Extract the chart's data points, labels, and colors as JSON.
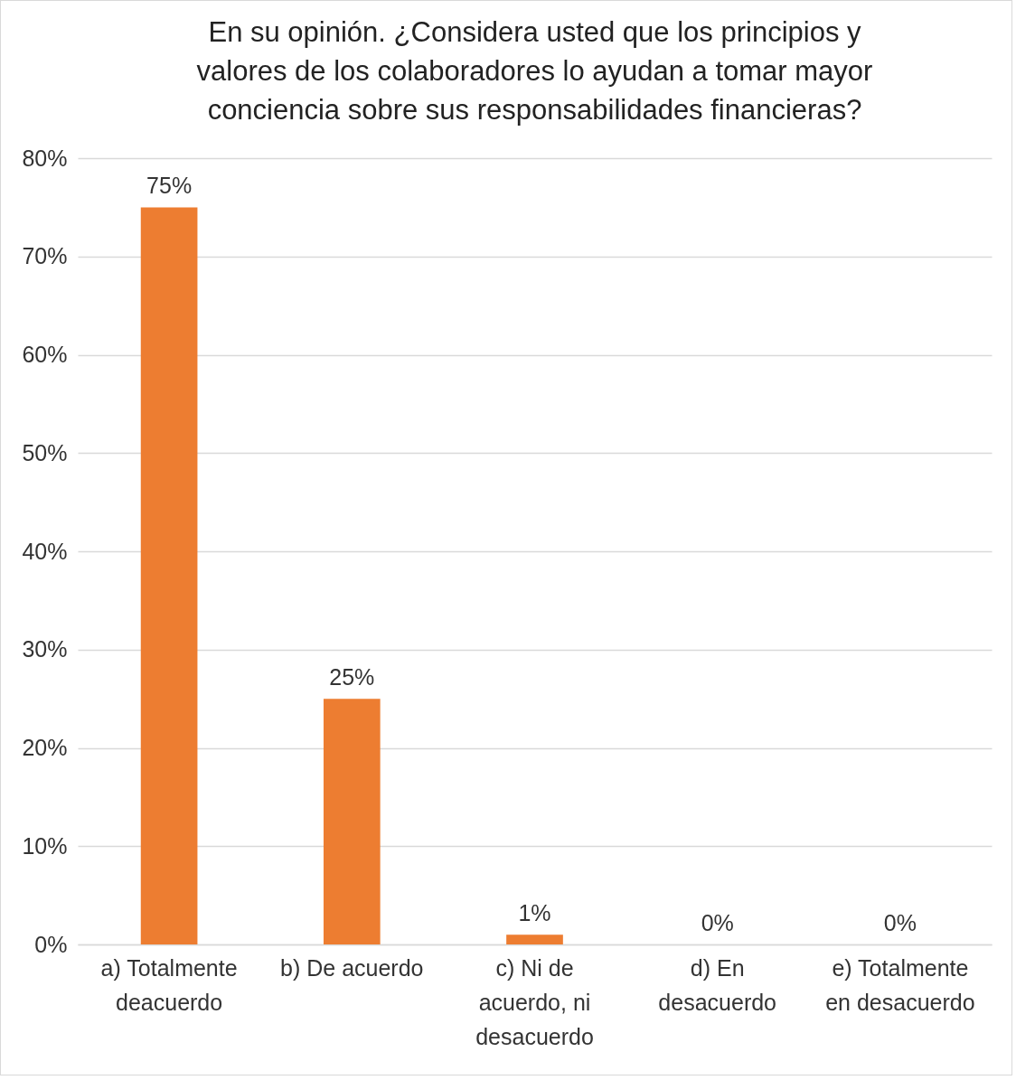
{
  "chart_data": {
    "type": "bar",
    "title": "En su opinión. ¿Considera usted que los principios y valores de los colaboradores lo ayudan a tomar mayor conciencia sobre sus responsabilidades financieras?",
    "categories": [
      "a) Totalmente deacuerdo",
      "b) De acuerdo",
      "c) Ni de acuerdo, ni desacuerdo",
      "d) En desacuerdo",
      "e) Totalmente en desacuerdo"
    ],
    "values": [
      75,
      25,
      1,
      0,
      0
    ],
    "value_labels": [
      "75%",
      "25%",
      "1%",
      "0%",
      "0%"
    ],
    "color": "#ed7d31",
    "ylim": [
      0,
      80
    ],
    "yticks": [
      {
        "value": 0,
        "label": "0%"
      },
      {
        "value": 10,
        "label": "10%"
      },
      {
        "value": 20,
        "label": "20%"
      },
      {
        "value": 30,
        "label": "30%"
      },
      {
        "value": 40,
        "label": "40%"
      },
      {
        "value": 50,
        "label": "50%"
      },
      {
        "value": 60,
        "label": "60%"
      },
      {
        "value": 70,
        "label": "70%"
      },
      {
        "value": 80,
        "label": "80%"
      }
    ],
    "grid": true
  }
}
